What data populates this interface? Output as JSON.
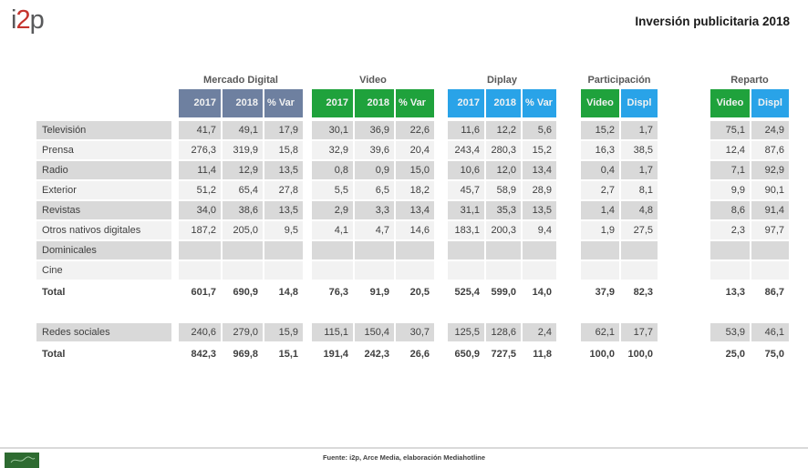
{
  "logo": {
    "part1": "i",
    "part2": "2",
    "part3": "p"
  },
  "title": "Inversión publicitaria 2018",
  "table": {
    "groups": [
      {
        "title": "Mercado Digital",
        "columns": [
          {
            "label": "2017",
            "color": "#6e80a0"
          },
          {
            "label": "2018",
            "color": "#6e80a0"
          },
          {
            "label": "% Var",
            "color": "#6e80a0"
          }
        ]
      },
      {
        "title": "Video",
        "columns": [
          {
            "label": "2017",
            "color": "#1fa23c"
          },
          {
            "label": "2018",
            "color": "#1fa23c"
          },
          {
            "label": "% Var",
            "color": "#1fa23c"
          }
        ]
      },
      {
        "title": "Diplay",
        "columns": [
          {
            "label": "2017",
            "color": "#29a3e8"
          },
          {
            "label": "2018",
            "color": "#29a3e8"
          },
          {
            "label": "% Var",
            "color": "#29a3e8"
          }
        ]
      },
      {
        "title": "Participación",
        "columns": [
          {
            "label": "Video",
            "color": "#1fa23c"
          },
          {
            "label": "Displ",
            "color": "#29a3e8"
          }
        ]
      },
      {
        "title": "Reparto",
        "columns": [
          {
            "label": "Video",
            "color": "#1fa23c"
          },
          {
            "label": "Displ",
            "color": "#29a3e8"
          }
        ]
      }
    ],
    "rows": [
      {
        "label": "Televisión",
        "shade": "dark",
        "bold": false,
        "values": [
          "41,7",
          "49,1",
          "17,9",
          "30,1",
          "36,9",
          "22,6",
          "11,6",
          "12,2",
          "5,6",
          "15,2",
          "1,7",
          "75,1",
          "24,9"
        ]
      },
      {
        "label": "Prensa",
        "shade": "light",
        "bold": false,
        "values": [
          "276,3",
          "319,9",
          "15,8",
          "32,9",
          "39,6",
          "20,4",
          "243,4",
          "280,3",
          "15,2",
          "16,3",
          "38,5",
          "12,4",
          "87,6"
        ]
      },
      {
        "label": "Radio",
        "shade": "dark",
        "bold": false,
        "values": [
          "11,4",
          "12,9",
          "13,5",
          "0,8",
          "0,9",
          "15,0",
          "10,6",
          "12,0",
          "13,4",
          "0,4",
          "1,7",
          "7,1",
          "92,9"
        ]
      },
      {
        "label": "Exterior",
        "shade": "light",
        "bold": false,
        "values": [
          "51,2",
          "65,4",
          "27,8",
          "5,5",
          "6,5",
          "18,2",
          "45,7",
          "58,9",
          "28,9",
          "2,7",
          "8,1",
          "9,9",
          "90,1"
        ]
      },
      {
        "label": "Revistas",
        "shade": "dark",
        "bold": false,
        "values": [
          "34,0",
          "38,6",
          "13,5",
          "2,9",
          "3,3",
          "13,4",
          "31,1",
          "35,3",
          "13,5",
          "1,4",
          "4,8",
          "8,6",
          "91,4"
        ]
      },
      {
        "label": "Otros nativos digitales",
        "shade": "light",
        "bold": false,
        "values": [
          "187,2",
          "205,0",
          "9,5",
          "4,1",
          "4,7",
          "14,6",
          "183,1",
          "200,3",
          "9,4",
          "1,9",
          "27,5",
          "2,3",
          "97,7"
        ]
      },
      {
        "label": "Dominicales",
        "shade": "dark",
        "bold": false,
        "values": []
      },
      {
        "label": "Cine",
        "shade": "light",
        "bold": false,
        "values": []
      },
      {
        "label": "Total",
        "shade": "none",
        "bold": true,
        "values": [
          "601,7",
          "690,9",
          "14,8",
          "76,3",
          "91,9",
          "20,5",
          "525,4",
          "599,0",
          "14,0",
          "37,9",
          "82,3",
          "13,3",
          "86,7"
        ]
      },
      {
        "label": "",
        "shade": "spacer",
        "bold": false,
        "values": []
      },
      {
        "label": "Redes sociales",
        "shade": "dark",
        "bold": false,
        "values": [
          "240,6",
          "279,0",
          "15,9",
          "115,1",
          "150,4",
          "30,7",
          "125,5",
          "128,6",
          "2,4",
          "62,1",
          "17,7",
          "53,9",
          "46,1"
        ]
      },
      {
        "label": "Total",
        "shade": "none",
        "bold": true,
        "values": [
          "842,3",
          "969,8",
          "15,1",
          "191,4",
          "242,3",
          "26,6",
          "650,9",
          "727,5",
          "11,8",
          "100,0",
          "100,0",
          "25,0",
          "75,0"
        ]
      }
    ]
  },
  "footer": {
    "source": "Fuente: i2p, Arce Media, elaboración Mediahotline"
  }
}
